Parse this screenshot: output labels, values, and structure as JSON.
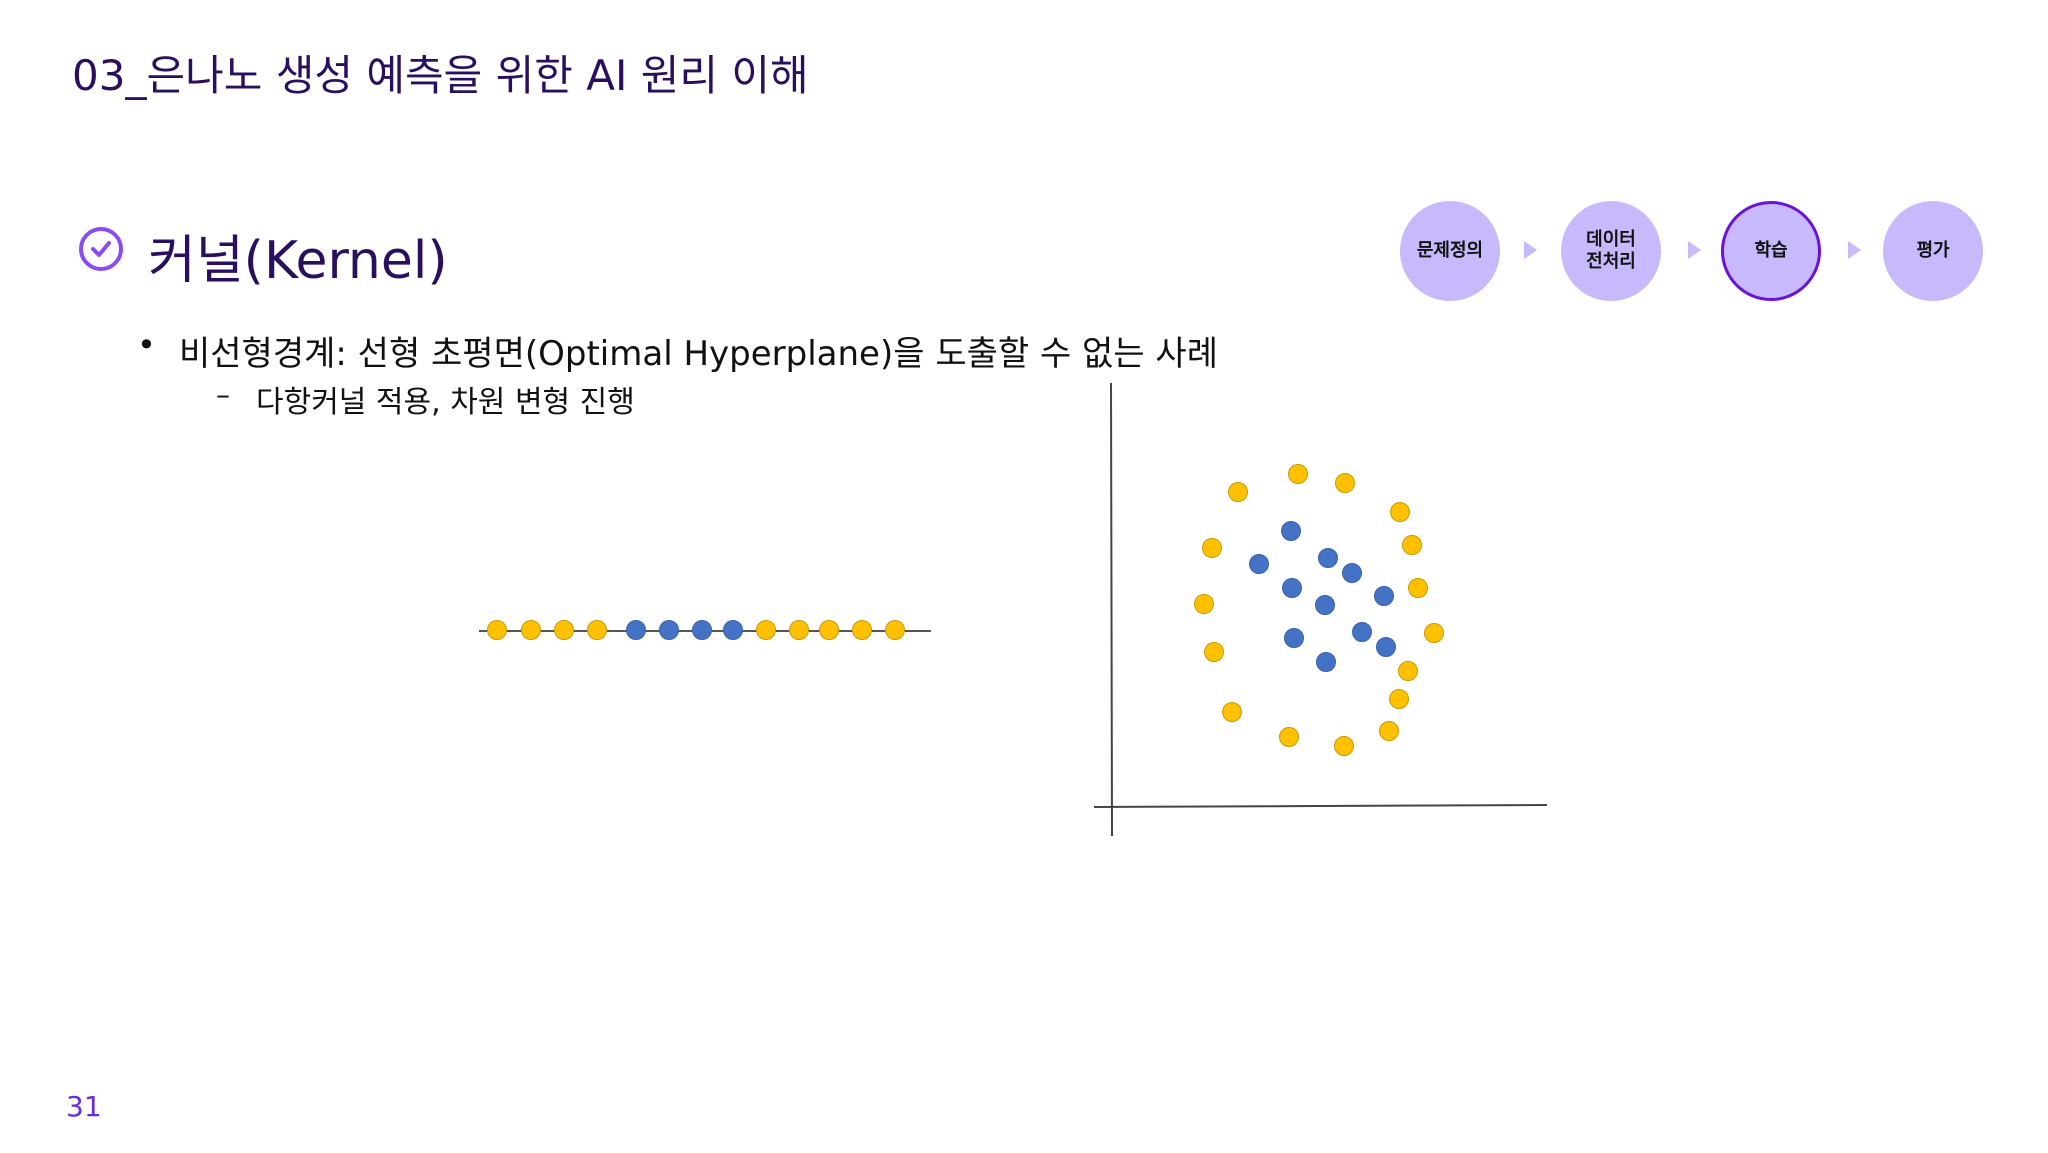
{
  "header": {
    "title": "03_은나노 생성 예측을 위한 AI 원리 이해"
  },
  "section": {
    "heading": "커널(Kernel)",
    "heading_icon": "check-circle-icon",
    "bullet": "비선형경계: 선형 초평면(Optimal Hyperplane)을 도출할 수 없는 사례",
    "sub_bullet": "다항커널 적용, 차원 변형 진행"
  },
  "process": {
    "steps": [
      {
        "label": "문제정의",
        "active": false
      },
      {
        "label": "데이터\n전처리",
        "active": false
      },
      {
        "label": "학습",
        "active": true
      },
      {
        "label": "평가",
        "active": false
      }
    ],
    "fill_color": "#c8b8fc",
    "active_border_color": "#6a12d6"
  },
  "diagram": {
    "class_colors": {
      "outer": "#ffc000",
      "inner": "#4472c4"
    },
    "one_d_sequence": [
      "outer",
      "outer",
      "outer",
      "outer",
      "inner",
      "inner",
      "inner",
      "inner",
      "outer",
      "outer",
      "outer",
      "outer",
      "outer"
    ]
  },
  "footer": {
    "page_number": "31"
  }
}
